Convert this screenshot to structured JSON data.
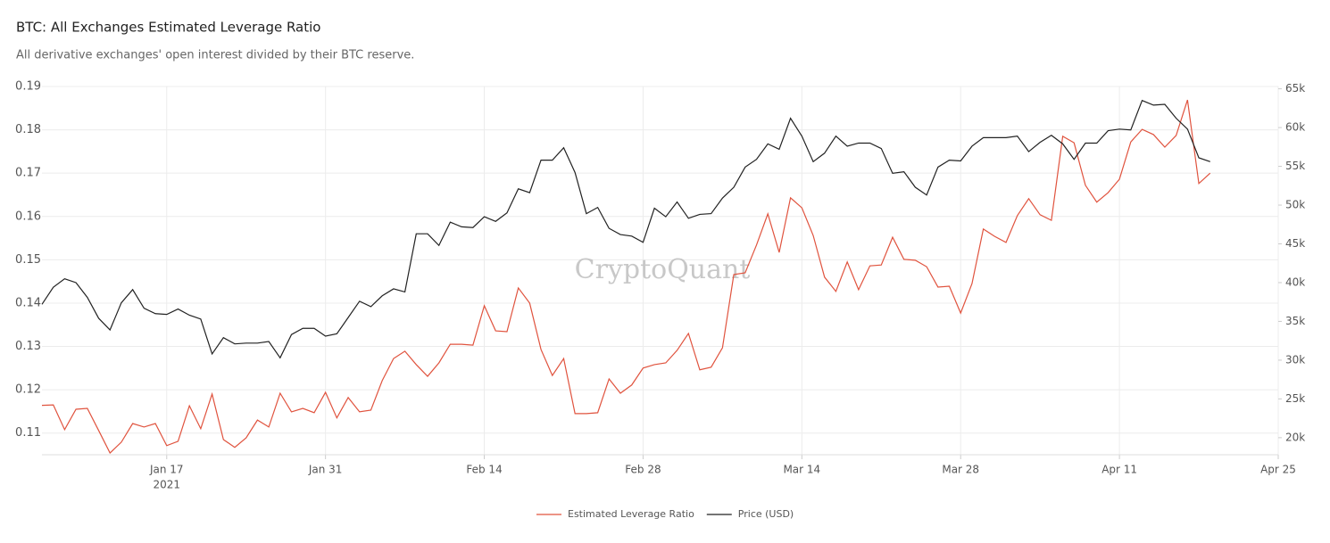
{
  "chart_data": {
    "type": "line",
    "title": "BTC: All Exchanges Estimated Leverage Ratio",
    "subtitle": "All derivative exchanges' open interest divided by their BTC reserve.",
    "watermark": "CryptoQuant",
    "x": [
      "2021-01-06",
      "2021-01-07",
      "2021-01-08",
      "2021-01-09",
      "2021-01-10",
      "2021-01-11",
      "2021-01-12",
      "2021-01-13",
      "2021-01-14",
      "2021-01-15",
      "2021-01-16",
      "2021-01-17",
      "2021-01-18",
      "2021-01-19",
      "2021-01-20",
      "2021-01-21",
      "2021-01-22",
      "2021-01-23",
      "2021-01-24",
      "2021-01-25",
      "2021-01-26",
      "2021-01-27",
      "2021-01-28",
      "2021-01-29",
      "2021-01-30",
      "2021-01-31",
      "2021-02-01",
      "2021-02-02",
      "2021-02-03",
      "2021-02-04",
      "2021-02-05",
      "2021-02-06",
      "2021-02-07",
      "2021-02-08",
      "2021-02-09",
      "2021-02-10",
      "2021-02-11",
      "2021-02-12",
      "2021-02-13",
      "2021-02-14",
      "2021-02-15",
      "2021-02-16",
      "2021-02-17",
      "2021-02-18",
      "2021-02-19",
      "2021-02-20",
      "2021-02-21",
      "2021-02-22",
      "2021-02-23",
      "2021-02-24",
      "2021-02-25",
      "2021-02-26",
      "2021-02-27",
      "2021-02-28",
      "2021-03-01",
      "2021-03-02",
      "2021-03-03",
      "2021-03-04",
      "2021-03-05",
      "2021-03-06",
      "2021-03-07",
      "2021-03-08",
      "2021-03-09",
      "2021-03-10",
      "2021-03-11",
      "2021-03-12",
      "2021-03-13",
      "2021-03-14",
      "2021-03-15",
      "2021-03-16",
      "2021-03-17",
      "2021-03-18",
      "2021-03-19",
      "2021-03-20",
      "2021-03-21",
      "2021-03-22",
      "2021-03-23",
      "2021-03-24",
      "2021-03-25",
      "2021-03-26",
      "2021-03-27",
      "2021-03-28",
      "2021-03-29",
      "2021-03-30",
      "2021-03-31",
      "2021-04-01",
      "2021-04-02",
      "2021-04-03",
      "2021-04-04",
      "2021-04-05",
      "2021-04-06",
      "2021-04-07",
      "2021-04-08",
      "2021-04-09",
      "2021-04-10",
      "2021-04-11",
      "2021-04-12",
      "2021-04-13",
      "2021-04-14",
      "2021-04-15",
      "2021-04-16",
      "2021-04-17",
      "2021-04-18",
      "2021-04-19"
    ],
    "series": [
      {
        "name": "Estimated Leverage Ratio",
        "color": "#e0533e",
        "values": [
          0.1164,
          0.1165,
          0.1108,
          0.1155,
          0.1157,
          0.1106,
          0.1054,
          0.1079,
          0.1122,
          0.1114,
          0.1122,
          0.1071,
          0.1081,
          0.1163,
          0.111,
          0.119,
          0.1085,
          0.1067,
          0.1089,
          0.113,
          0.1114,
          0.1192,
          0.1149,
          0.1157,
          0.1147,
          0.1194,
          0.1135,
          0.1182,
          0.1149,
          0.1153,
          0.1221,
          0.1272,
          0.1289,
          0.1258,
          0.1231,
          0.1262,
          0.1305,
          0.1305,
          0.1303,
          0.1394,
          0.1336,
          0.1334,
          0.1435,
          0.14,
          0.1293,
          0.1233,
          0.1272,
          0.1145,
          0.1145,
          0.1147,
          0.1225,
          0.1192,
          0.1211,
          0.125,
          0.1258,
          0.1262,
          0.1291,
          0.133,
          0.1246,
          0.1252,
          0.1297,
          0.1466,
          0.147,
          0.1534,
          0.1606,
          0.1517,
          0.1643,
          0.162,
          0.1556,
          0.146,
          0.1427,
          0.1495,
          0.1431,
          0.1486,
          0.1488,
          0.1552,
          0.1501,
          0.1499,
          0.1484,
          0.1437,
          0.1439,
          0.1377,
          0.1445,
          0.1571,
          0.1554,
          0.154,
          0.1602,
          0.1641,
          0.1604,
          0.1591,
          0.1785,
          0.177,
          0.1672,
          0.1633,
          0.1655,
          0.1686,
          0.1772,
          0.1801,
          0.1789,
          0.176,
          0.1787,
          0.1869,
          0.1676,
          0.17
        ]
      },
      {
        "name": "Price (USD)",
        "color": "#222222",
        "axis": "y2",
        "values": [
          37200,
          39400,
          40500,
          40000,
          38100,
          35400,
          33900,
          37400,
          39100,
          36700,
          36000,
          35900,
          36600,
          35800,
          35300,
          30800,
          32900,
          32100,
          32200,
          32200,
          32400,
          30300,
          33300,
          34100,
          34100,
          33100,
          33400,
          35500,
          37600,
          36900,
          38300,
          39200,
          38800,
          46300,
          46300,
          44800,
          47800,
          47200,
          47100,
          48500,
          47900,
          49000,
          52100,
          51600,
          55800,
          55800,
          57400,
          54200,
          48900,
          49700,
          47000,
          46200,
          46000,
          45200,
          49600,
          48500,
          50400,
          48300,
          48800,
          48900,
          50900,
          52300,
          54900,
          55900,
          57900,
          57200,
          61200,
          58900,
          55600,
          56700,
          58900,
          57600,
          58000,
          58000,
          57300,
          54100,
          54300,
          52300,
          51300,
          54900,
          55800,
          55700,
          57600,
          58700,
          58700,
          58700,
          58900,
          56900,
          58100,
          59000,
          57900,
          55900,
          58000,
          58000,
          59600,
          59800,
          59700,
          63500,
          62900,
          63000,
          61200,
          59800,
          56100,
          55600
        ]
      }
    ],
    "xlim": [
      "2021-01-06",
      "2021-04-25"
    ],
    "xticks": [
      {
        "value": "2021-01-17",
        "label": "Jan 17"
      },
      {
        "value": "2021-01-31",
        "label": "Jan 31"
      },
      {
        "value": "2021-02-14",
        "label": "Feb 14"
      },
      {
        "value": "2021-02-28",
        "label": "Feb 28"
      },
      {
        "value": "2021-03-14",
        "label": "Mar 14"
      },
      {
        "value": "2021-03-28",
        "label": "Mar 28"
      },
      {
        "value": "2021-04-11",
        "label": "Apr 11"
      },
      {
        "value": "2021-04-25",
        "label": "Apr 25"
      }
    ],
    "x_year_label": "2021",
    "ylim": [
      0.105,
      0.19
    ],
    "yticks": [
      0.11,
      0.12,
      0.13,
      0.14,
      0.15,
      0.16,
      0.17,
      0.18,
      0.19
    ],
    "y2lim": [
      17800,
      65300
    ],
    "y2ticks": [
      {
        "value": 20000,
        "label": "20k"
      },
      {
        "value": 25000,
        "label": "25k"
      },
      {
        "value": 30000,
        "label": "30k"
      },
      {
        "value": 35000,
        "label": "35k"
      },
      {
        "value": 40000,
        "label": "40k"
      },
      {
        "value": 45000,
        "label": "45k"
      },
      {
        "value": 50000,
        "label": "50k"
      },
      {
        "value": 55000,
        "label": "55k"
      },
      {
        "value": 60000,
        "label": "60k"
      },
      {
        "value": 65000,
        "label": "65k"
      }
    ],
    "grid": true,
    "legend": "bottom"
  }
}
